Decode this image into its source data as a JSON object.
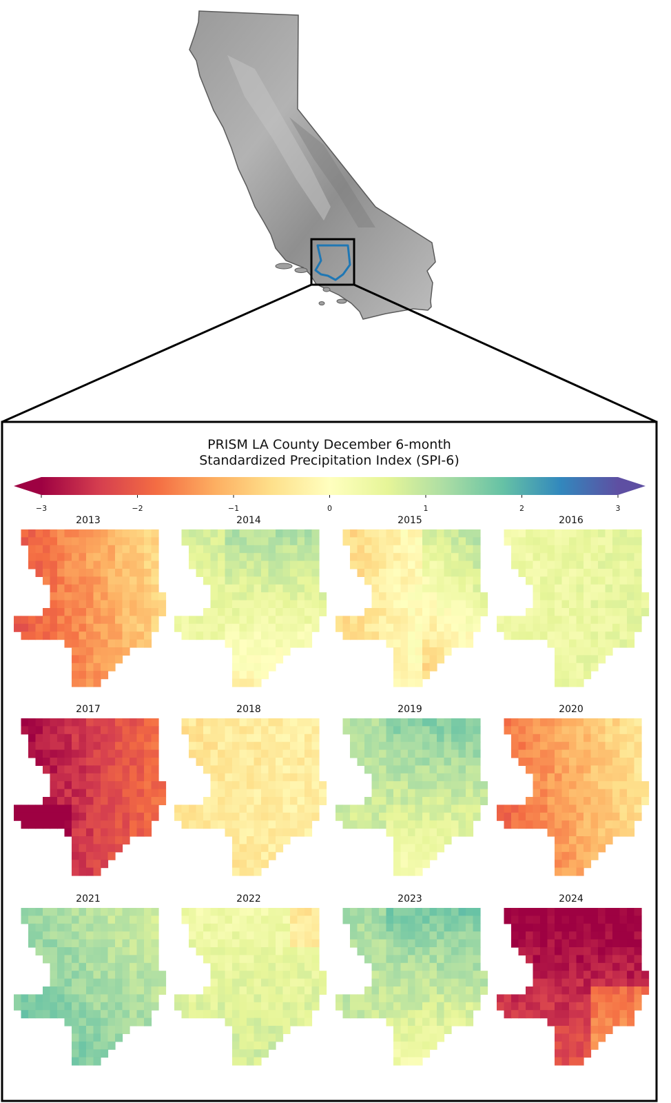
{
  "title": {
    "line1": "PRISM LA County December 6-month",
    "line2": "Standardized Precipitation Index (SPI-6)"
  },
  "colorbar": {
    "min": -3,
    "max": 3,
    "ticks": [
      {
        "value": -3,
        "label": "−3"
      },
      {
        "value": -2,
        "label": "−2"
      },
      {
        "value": -1,
        "label": "−1"
      },
      {
        "value": 0,
        "label": "0"
      },
      {
        "value": 1,
        "label": "1"
      },
      {
        "value": 2,
        "label": "2"
      },
      {
        "value": 3,
        "label": "3"
      }
    ],
    "colormap": "Spectral",
    "colors": [
      "#9e0142",
      "#d53e4f",
      "#f46d43",
      "#fdae61",
      "#fee08b",
      "#ffffbf",
      "#e6f598",
      "#abdda4",
      "#66c2a5",
      "#3288bd",
      "#5e4fa2"
    ],
    "extend": "both"
  },
  "overview_map": {
    "region": "California",
    "fill_color": "#a9a9a9",
    "county_outline_color": "#1f77b4",
    "inset_box_color": "#000000"
  },
  "panels": [
    {
      "year": "2013",
      "mean_spi": -1.4,
      "pattern": "west-dry"
    },
    {
      "year": "2014",
      "mean_spi": 0.5,
      "pattern": "north-wet"
    },
    {
      "year": "2015",
      "mean_spi": -0.1,
      "pattern": "west-dry-north-wet"
    },
    {
      "year": "2016",
      "mean_spi": 0.45,
      "pattern": "uniform"
    },
    {
      "year": "2017",
      "mean_spi": -2.4,
      "pattern": "west-very-dry"
    },
    {
      "year": "2018",
      "mean_spi": -0.4,
      "pattern": "uniform"
    },
    {
      "year": "2019",
      "mean_spi": 0.9,
      "pattern": "north-wet"
    },
    {
      "year": "2020",
      "mean_spi": -1.2,
      "pattern": "west-dry"
    },
    {
      "year": "2021",
      "mean_spi": 1.3,
      "pattern": "southwest-wet"
    },
    {
      "year": "2022",
      "mean_spi": 0.6,
      "pattern": "northeast-dry-spot"
    },
    {
      "year": "2023",
      "mean_spi": 1.0,
      "pattern": "north-wet"
    },
    {
      "year": "2024",
      "mean_spi": -2.6,
      "pattern": "north-very-dry"
    }
  ]
}
